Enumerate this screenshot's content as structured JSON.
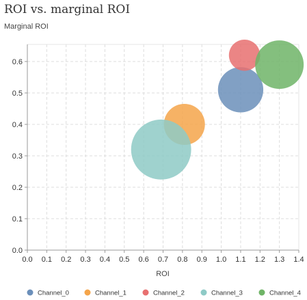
{
  "chart_data": {
    "type": "scatter",
    "title": "ROI vs. marginal ROI",
    "subtitle": "Marginal ROI",
    "xlabel": "ROI",
    "ylabel": "",
    "xlim": [
      0,
      1.4
    ],
    "ylim": [
      0,
      0.65
    ],
    "x_ticks": [
      "0.0",
      "0.1",
      "0.2",
      "0.3",
      "0.4",
      "0.5",
      "0.6",
      "0.7",
      "0.8",
      "0.9",
      "1.0",
      "1.1",
      "1.2",
      "1.3",
      "1.4"
    ],
    "y_ticks": [
      "0.0",
      "0.1",
      "0.2",
      "0.3",
      "0.4",
      "0.5",
      "0.6"
    ],
    "grid": true,
    "legend_position": "bottom",
    "series": [
      {
        "name": "Channel_0",
        "color": "#6b8fba",
        "x": 1.1,
        "y": 0.51,
        "size": 0.95
      },
      {
        "name": "Channel_1",
        "color": "#f5a54a",
        "x": 0.81,
        "y": 0.4,
        "size": 0.78
      },
      {
        "name": "Channel_2",
        "color": "#e87070",
        "x": 1.12,
        "y": 0.62,
        "size": 0.45
      },
      {
        "name": "Channel_3",
        "color": "#8ecac6",
        "x": 0.69,
        "y": 0.32,
        "size": 1.67
      },
      {
        "name": "Channel_4",
        "color": "#6fb467",
        "x": 1.3,
        "y": 0.59,
        "size": 1.09
      }
    ]
  }
}
